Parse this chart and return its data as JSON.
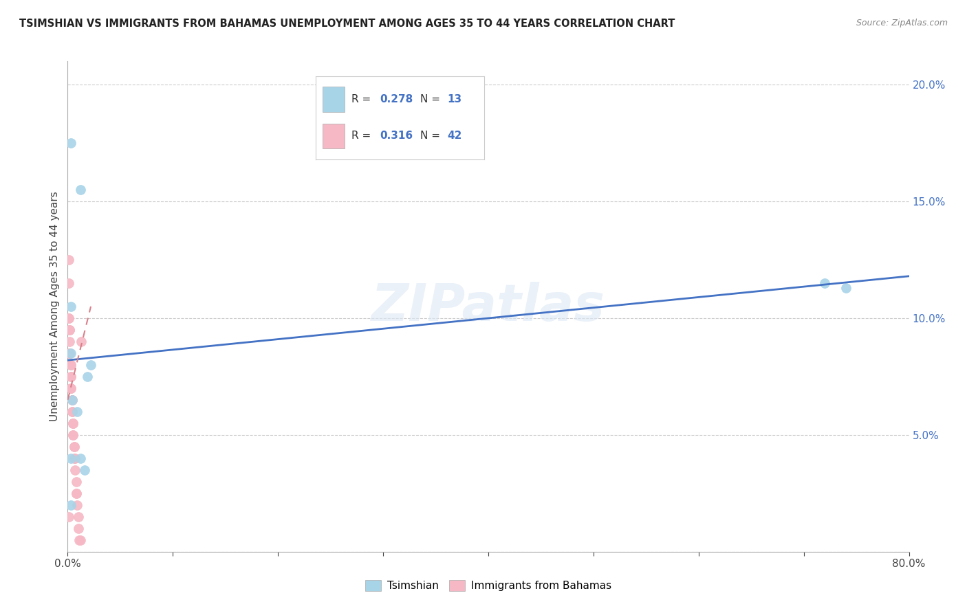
{
  "title": "TSIMSHIAN VS IMMIGRANTS FROM BAHAMAS UNEMPLOYMENT AMONG AGES 35 TO 44 YEARS CORRELATION CHART",
  "source": "Source: ZipAtlas.com",
  "ylabel": "Unemployment Among Ages 35 to 44 years",
  "xlim": [
    0,
    0.8
  ],
  "ylim": [
    0,
    0.21
  ],
  "xticks": [
    0.0,
    0.1,
    0.2,
    0.3,
    0.4,
    0.5,
    0.6,
    0.7,
    0.8
  ],
  "xticklabels": [
    "0.0%",
    "",
    "",
    "",
    "",
    "",
    "",
    "",
    "80.0%"
  ],
  "yticks_right": [
    0.0,
    0.05,
    0.1,
    0.15,
    0.2
  ],
  "yticklabels_right": [
    "",
    "5.0%",
    "10.0%",
    "15.0%",
    "20.0%"
  ],
  "tsimshian_color": "#a8d4e8",
  "bahamas_color": "#f5b8c4",
  "trendline_blue": "#4472c4",
  "trendline_pink": "#d9808a",
  "watermark": "ZIPatlas",
  "tsimshian_x": [
    0.003,
    0.012,
    0.003,
    0.003,
    0.022,
    0.004,
    0.009,
    0.003,
    0.012,
    0.016,
    0.019,
    0.003,
    0.72,
    0.74
  ],
  "tsimshian_y": [
    0.175,
    0.155,
    0.105,
    0.085,
    0.08,
    0.065,
    0.06,
    0.04,
    0.04,
    0.035,
    0.075,
    0.02,
    0.115,
    0.113
  ],
  "bahamas_x": [
    0.001,
    0.001,
    0.001,
    0.001,
    0.002,
    0.002,
    0.002,
    0.002,
    0.002,
    0.002,
    0.003,
    0.003,
    0.003,
    0.003,
    0.003,
    0.003,
    0.004,
    0.004,
    0.004,
    0.004,
    0.004,
    0.005,
    0.005,
    0.005,
    0.005,
    0.005,
    0.006,
    0.006,
    0.006,
    0.007,
    0.007,
    0.008,
    0.008,
    0.008,
    0.009,
    0.01,
    0.01,
    0.011,
    0.012,
    0.013,
    0.002,
    0.001
  ],
  "bahamas_y": [
    0.125,
    0.115,
    0.1,
    0.1,
    0.095,
    0.095,
    0.09,
    0.085,
    0.085,
    0.085,
    0.08,
    0.08,
    0.075,
    0.075,
    0.07,
    0.07,
    0.065,
    0.065,
    0.065,
    0.06,
    0.06,
    0.055,
    0.055,
    0.055,
    0.05,
    0.05,
    0.045,
    0.045,
    0.04,
    0.04,
    0.035,
    0.03,
    0.025,
    0.025,
    0.02,
    0.015,
    0.01,
    0.005,
    0.005,
    0.09,
    0.095,
    0.015
  ],
  "blue_trend_x": [
    0.0,
    0.8
  ],
  "blue_trend_y": [
    0.082,
    0.118
  ],
  "pink_trend_x": [
    0.0,
    0.022
  ],
  "pink_trend_y": [
    0.065,
    0.105
  ]
}
